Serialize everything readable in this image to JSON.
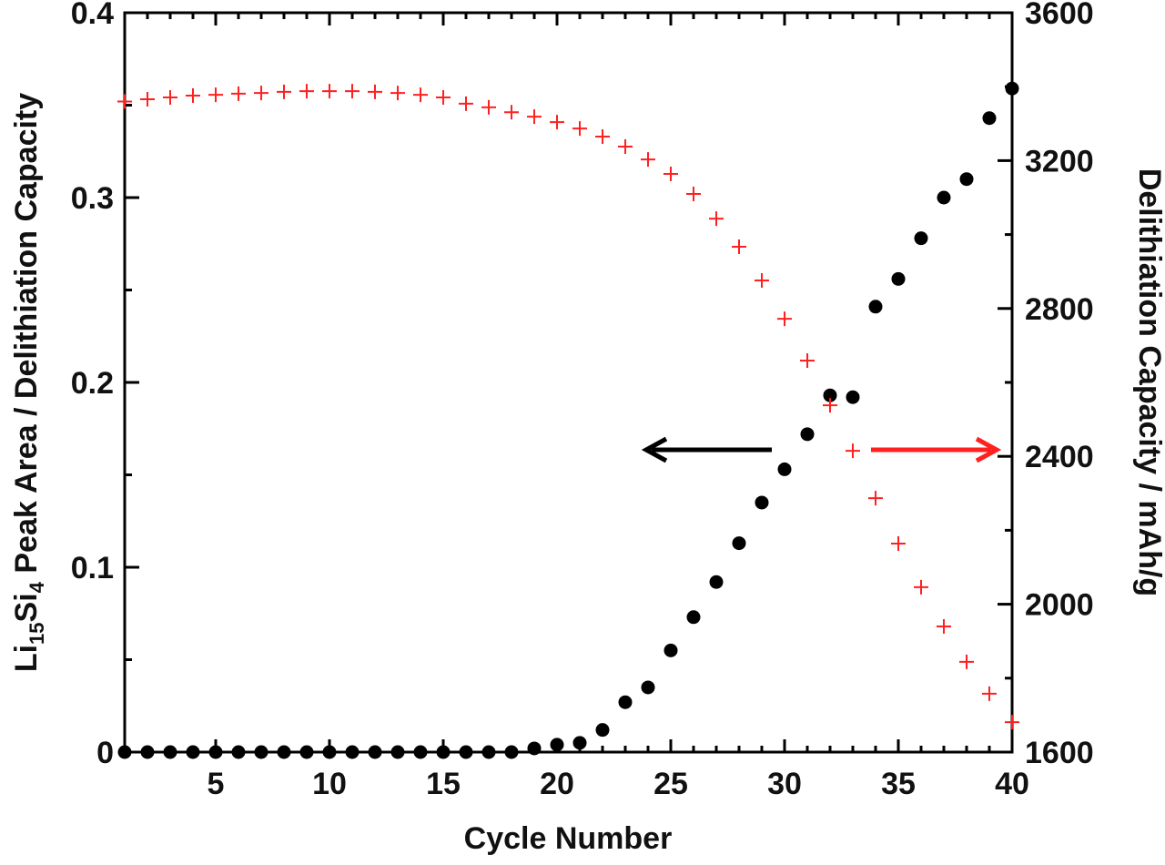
{
  "chart_data": {
    "type": "scatter",
    "x_label": "Cycle Number",
    "y_label": [
      "Li",
      "15",
      "Si",
      "4",
      " Peak Area / Delithiation Capacity"
    ],
    "y2_label": "Delithiation Capacity / mAh/g",
    "x": [
      1,
      2,
      3,
      4,
      5,
      6,
      7,
      8,
      9,
      10,
      11,
      12,
      13,
      14,
      15,
      16,
      17,
      18,
      19,
      20,
      21,
      22,
      23,
      24,
      25,
      26,
      27,
      28,
      29,
      30,
      31,
      32,
      33,
      34,
      35,
      36,
      37,
      38,
      39,
      40
    ],
    "series": [
      {
        "color": "#000000",
        "marker": "circle",
        "values": [
          0,
          0,
          0,
          0,
          0,
          0,
          0,
          0,
          0,
          0,
          0,
          0,
          0,
          0,
          0,
          0,
          0,
          0,
          0.002,
          0.004,
          0.005,
          0.012,
          0.027,
          0.035,
          0.055,
          0.073,
          0.092,
          0.113,
          0.135,
          0.153,
          0.172,
          0.193,
          0.192,
          0.241,
          0.256,
          0.278,
          0.3,
          0.31,
          0.343,
          0.359
        ]
      },
      {
        "color": "#ff2020",
        "marker": "plus",
        "axis": "y2",
        "values": [
          3360,
          3366,
          3371,
          3376,
          3378,
          3381,
          3383,
          3386,
          3388,
          3388,
          3388,
          3386,
          3383,
          3378,
          3371,
          3354,
          3344,
          3331,
          3319,
          3304,
          3287,
          3265,
          3238,
          3203,
          3164,
          3110,
          3043,
          2967,
          2876,
          2772,
          2659,
          2538,
          2415,
          2287,
          2164,
          2046,
          1940,
          1844,
          1758,
          1681
        ]
      }
    ],
    "xlim": [
      1,
      40
    ],
    "xticks": [
      5,
      10,
      15,
      20,
      25,
      30,
      35,
      40
    ],
    "ylim": [
      0,
      0.4
    ],
    "yticks": [
      0,
      0.1,
      0.2,
      0.3,
      0.4
    ],
    "y2lim": [
      1600,
      3600
    ],
    "y2ticks": [
      1600,
      2000,
      2400,
      2800,
      3200,
      3600
    ]
  }
}
